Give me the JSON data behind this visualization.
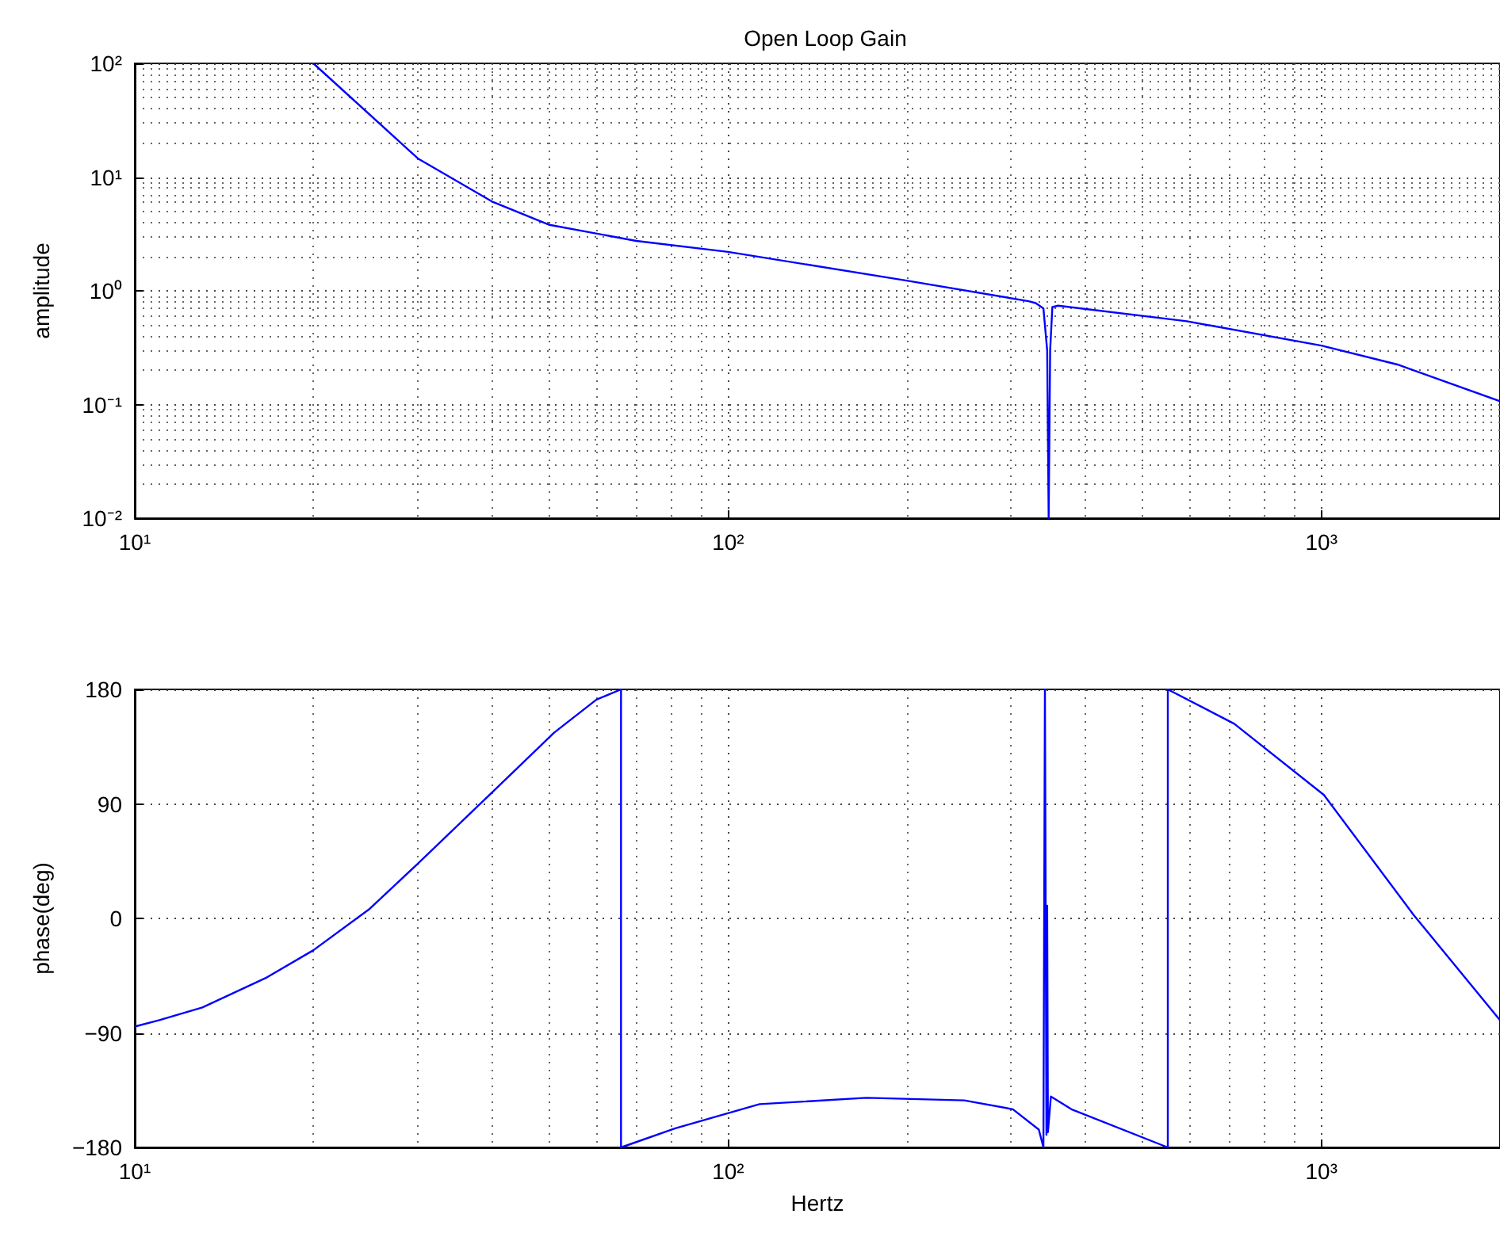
{
  "chart_data": [
    {
      "type": "line",
      "title": "Open Loop Gain",
      "ylabel": "amplitude",
      "log": "xy",
      "grid": true,
      "marker": "none",
      "line_style": "solid",
      "color": "#0000ff",
      "x": [
        20,
        30,
        40,
        50,
        70,
        100,
        200,
        321,
        330,
        340,
        345,
        347,
        349,
        352,
        360,
        593,
        1000,
        1343,
        2000
      ],
      "values": [
        100,
        14.6,
        6.1,
        3.8,
        2.75,
        2.2,
        1.23,
        0.81,
        0.78,
        0.7,
        0.3,
        0.01,
        0.3,
        0.72,
        0.74,
        0.54,
        0.33,
        0.225,
        0.107
      ],
      "xlim": [
        10,
        2000
      ],
      "ylim": [
        0.01,
        100
      ],
      "xticks": [
        {
          "value": 10,
          "label": "10¹"
        },
        {
          "value": 100,
          "label": "10²"
        },
        {
          "value": 1000,
          "label": "10³"
        }
      ],
      "yticks": [
        {
          "value": 0.01,
          "label": "10⁻²"
        },
        {
          "value": 0.1,
          "label": "10⁻¹"
        },
        {
          "value": 1,
          "label": "10⁰"
        },
        {
          "value": 10,
          "label": "10¹"
        },
        {
          "value": 100,
          "label": "10²"
        }
      ]
    },
    {
      "type": "line",
      "xlabel": "Hertz",
      "ylabel": "phase(deg)",
      "log": "x",
      "grid": true,
      "marker": "none",
      "line_style": "solid",
      "color": "#0000ff",
      "x": [
        10,
        11,
        13,
        16.6,
        20,
        24.8,
        30,
        40,
        50.9,
        60,
        66,
        66,
        81.5,
        113,
        171,
        250,
        302,
        334,
        340,
        342,
        344,
        345,
        346,
        350,
        379,
        551,
        551,
        713,
        1010,
        1429,
        2000
      ],
      "values": [
        -85,
        -80,
        -70,
        -47,
        -25,
        7,
        43,
        99,
        146,
        172,
        180,
        -180,
        -165,
        -146,
        -141,
        -143,
        -150,
        -166,
        -180,
        180,
        -170,
        10,
        -168,
        -140,
        -150,
        -180,
        180,
        153,
        97,
        3,
        -80
      ],
      "xlim": [
        10,
        2000
      ],
      "ylim": [
        -180,
        180
      ],
      "xticks": [
        {
          "value": 10,
          "label": "10¹"
        },
        {
          "value": 100,
          "label": "10²"
        },
        {
          "value": 1000,
          "label": "10³"
        }
      ],
      "yticks": [
        {
          "value": -180,
          "label": "−180"
        },
        {
          "value": -90,
          "label": "−90"
        },
        0,
        90,
        180
      ]
    }
  ]
}
